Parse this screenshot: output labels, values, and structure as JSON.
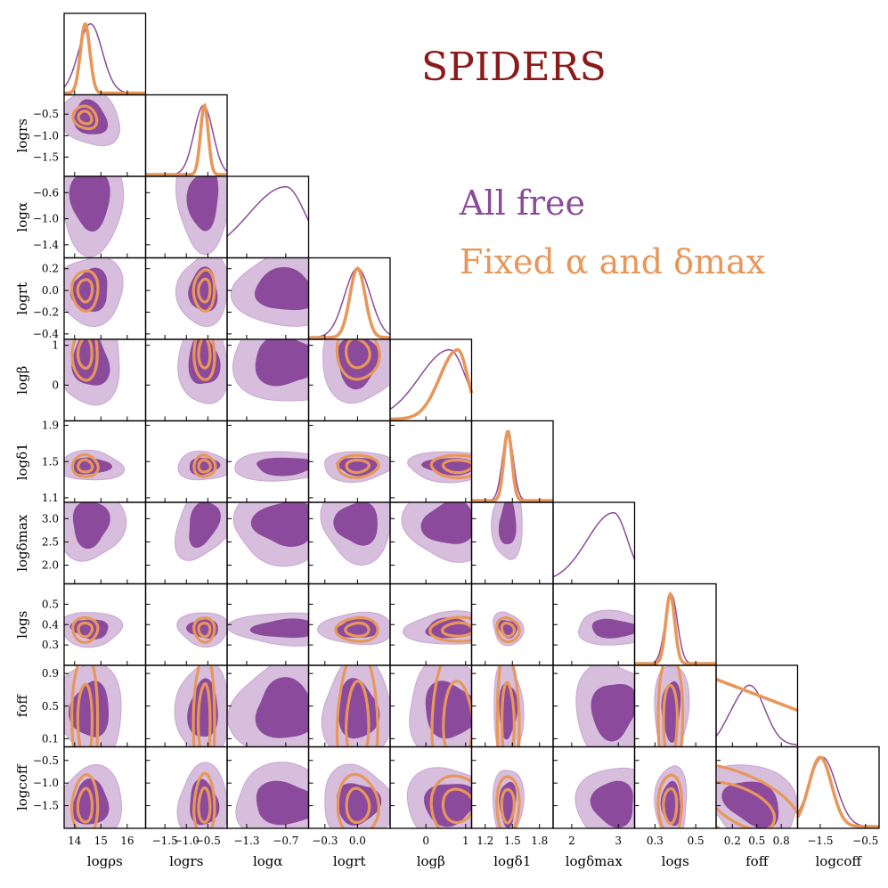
{
  "title": "SPIDERS",
  "legend": [
    {
      "label": "All free",
      "color": "#8B4A9C"
    },
    {
      "label": "Fixed α and δmax",
      "color": "#E8975A"
    }
  ],
  "colors": {
    "purple_dark": "#8B4A9C",
    "purple_light": "#D7BEDD",
    "orange": "#E8975A",
    "frame": "#000000"
  },
  "chart_data": {
    "type": "corner",
    "title": "SPIDERS",
    "series": [
      {
        "name": "All free",
        "color": "#8B4A9C"
      },
      {
        "name": "Fixed α and δmax",
        "color": "#E8975A"
      }
    ],
    "parameters": [
      {
        "id": "logrho_s",
        "label": "logρs",
        "range": [
          13.6,
          16.7
        ],
        "ticks": [
          "14",
          "15",
          "16"
        ],
        "tick_values": [
          14,
          15,
          16
        ],
        "mean_all": 14.6,
        "sd_all": 0.45,
        "mean_fix": 14.4,
        "sd_fix": 0.18
      },
      {
        "id": "logr_s",
        "label": "logrs",
        "range": [
          -1.95,
          -0.05
        ],
        "ticks": [
          "−1.5",
          "−1.0",
          "−0.5"
        ],
        "tick_values": [
          -1.5,
          -1.0,
          -0.5
        ],
        "mean_all": -0.6,
        "sd_all": 0.22,
        "mean_fix": -0.58,
        "sd_fix": 0.09
      },
      {
        "id": "logalpha",
        "label": "logα",
        "range": [
          -1.6,
          -0.35
        ],
        "ticks": [
          "−1.3",
          "−0.7"
        ],
        "tick_values": [
          -1.3,
          -0.7
        ],
        "mean_all": -0.7,
        "sd_all": 0.3
      },
      {
        "id": "logr_t",
        "label": "logrt",
        "range": [
          -0.45,
          0.3
        ],
        "ticks": [
          "−0.3",
          "0.0"
        ],
        "tick_values": [
          -0.3,
          0.0
        ],
        "ticks_y": [
          "−0.4",
          "−0.2",
          "0.0",
          "0.2"
        ],
        "tick_values_y": [
          -0.4,
          -0.2,
          0.0,
          0.2
        ],
        "mean_all": 0.0,
        "sd_all": 0.12,
        "mean_fix": 0.0,
        "sd_fix": 0.07
      },
      {
        "id": "logbeta",
        "label": "logβ",
        "range": [
          -0.9,
          1.15
        ],
        "ticks": [
          "0",
          "1"
        ],
        "tick_values": [
          0,
          1
        ],
        "mean_all": 0.6,
        "sd_all": 0.4,
        "mean_fix": 0.8,
        "sd_fix": 0.25
      },
      {
        "id": "logdelta_1",
        "label": "logδ1",
        "range": [
          1.05,
          1.95
        ],
        "ticks": [
          "1.2",
          "1.5",
          "1.8"
        ],
        "tick_values": [
          1.2,
          1.5,
          1.8
        ],
        "ticks_y": [
          "1.1",
          "1.5",
          "1.9"
        ],
        "tick_values_y": [
          1.1,
          1.5,
          1.9
        ],
        "mean_all": 1.45,
        "sd_all": 0.06,
        "mean_fix": 1.45,
        "sd_fix": 0.045
      },
      {
        "id": "logdelta_max",
        "label": "logδmax",
        "range": [
          1.6,
          3.35
        ],
        "ticks": [
          "2",
          "3"
        ],
        "tick_values": [
          2,
          3
        ],
        "ticks_y": [
          "2.0",
          "2.5",
          "3.0"
        ],
        "tick_values_y": [
          2.0,
          2.5,
          3.0
        ],
        "mean_all": 2.9,
        "sd_all": 0.3
      },
      {
        "id": "logs",
        "label": "logs",
        "range": [
          0.2,
          0.6
        ],
        "ticks": [
          "0.3",
          "0.5"
        ],
        "tick_values": [
          0.3,
          0.5
        ],
        "ticks_y": [
          "0.3",
          "0.4",
          "0.5"
        ],
        "tick_values_y": [
          0.3,
          0.4,
          0.5
        ],
        "mean_all": 0.38,
        "sd_all": 0.03,
        "mean_fix": 0.375,
        "sd_fix": 0.022
      },
      {
        "id": "f_off",
        "label": "foff",
        "range": [
          0.0,
          1.0
        ],
        "ticks": [
          "0.2",
          "0.5",
          "0.8"
        ],
        "tick_values": [
          0.2,
          0.5,
          0.8
        ],
        "ticks_y": [
          "0.1",
          "0.5",
          "0.9"
        ],
        "tick_values_y": [
          0.1,
          0.5,
          0.9
        ],
        "mean_all": 0.45,
        "sd_all": 0.22,
        "mean_fix": 0.3,
        "sd_fix": 0.5
      },
      {
        "id": "logc_off",
        "label": "logcoff",
        "range": [
          -2.0,
          -0.2
        ],
        "ticks": [
          "−1.5",
          "−0.5"
        ],
        "tick_values": [
          -1.5,
          -0.5
        ],
        "ticks_y": [
          "−1.5",
          "−1.0",
          "−0.5"
        ],
        "tick_values_y": [
          -1.5,
          -1.0,
          -0.5
        ],
        "mean_all": -1.45,
        "sd_all": 0.3,
        "mean_fix": -1.5,
        "sd_fix": 0.25
      }
    ],
    "y_tick_overrides": {
      "logr_s": {
        "ticks": [
          "−0.5",
          "−1.0",
          "−1.5"
        ],
        "tick_values": [
          -0.5,
          -1.0,
          -1.5
        ]
      },
      "logalpha": {
        "ticks": [
          "−0.6",
          "−1.0",
          "−1.4"
        ],
        "tick_values": [
          -0.6,
          -1.0,
          -1.4
        ]
      },
      "logbeta": {
        "ticks": [
          "1",
          "0"
        ],
        "tick_values": [
          1,
          0
        ]
      }
    },
    "fixed_parameters": [
      "logalpha",
      "logdelta_max"
    ]
  }
}
